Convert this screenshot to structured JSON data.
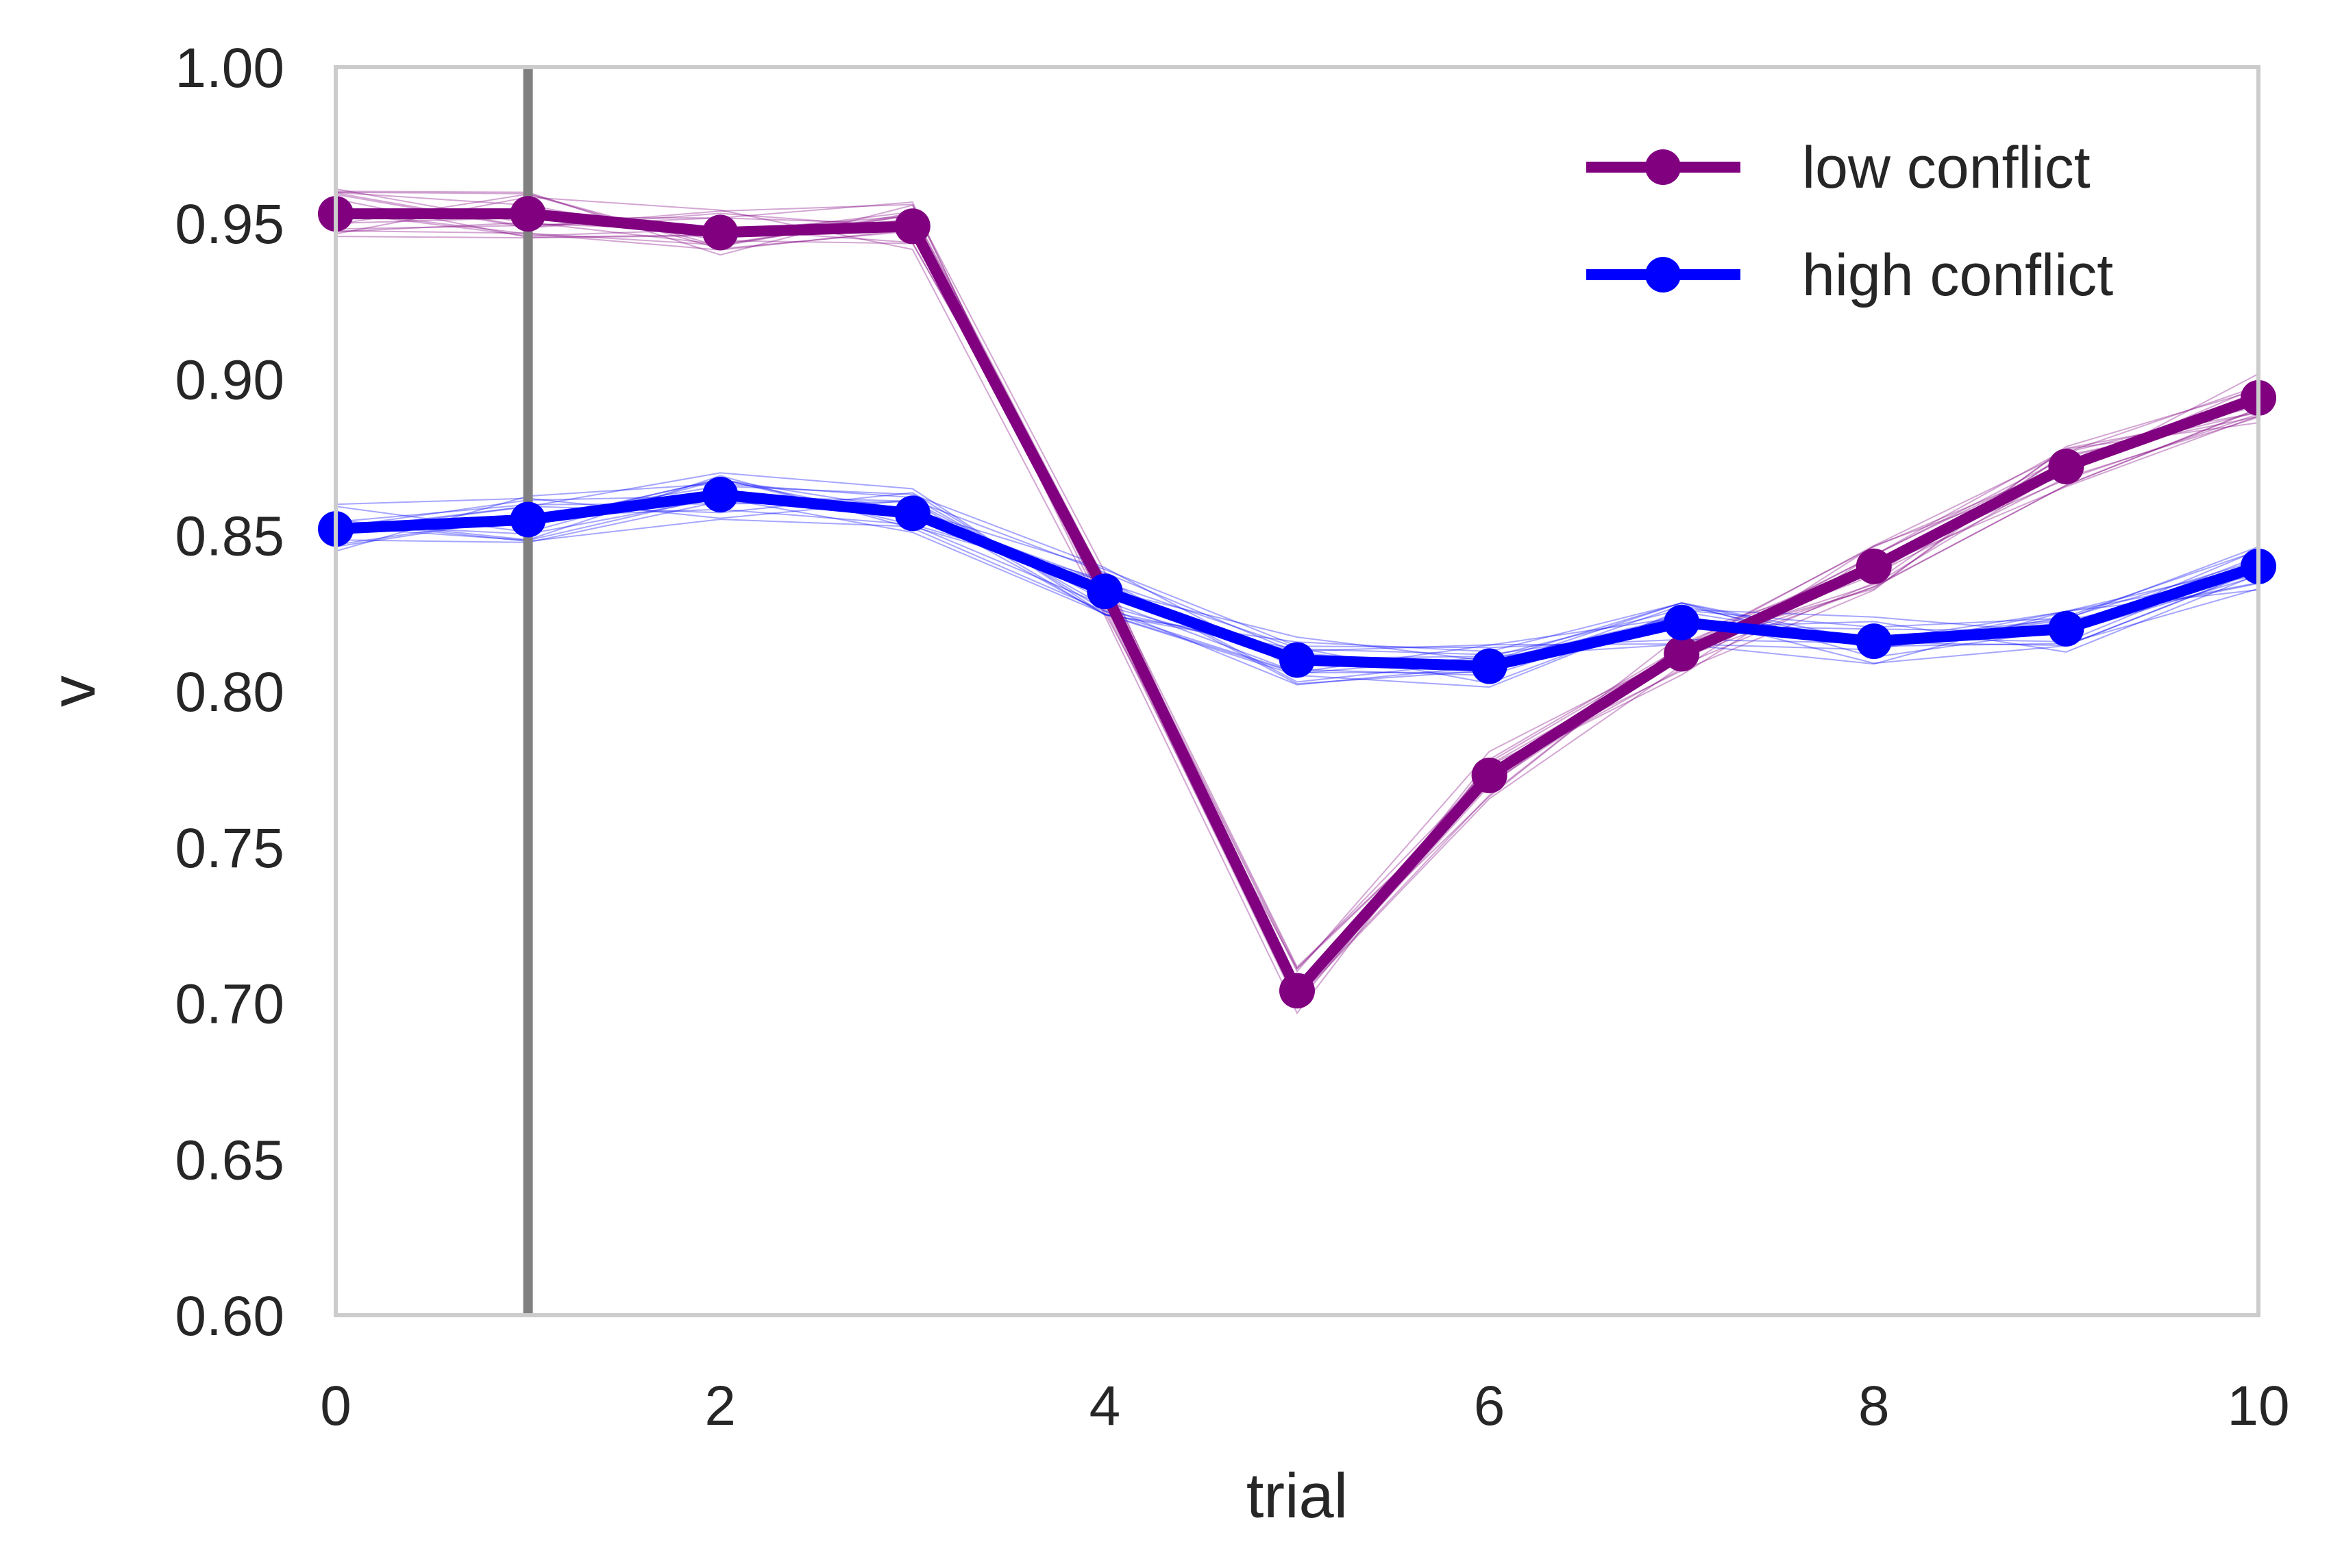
{
  "chart_data": {
    "type": "line",
    "title": "",
    "xlabel": "trial",
    "ylabel": "v",
    "xlim": [
      0,
      10
    ],
    "ylim": [
      0.6,
      1.0
    ],
    "xticks": [
      "0",
      "2",
      "4",
      "6",
      "8",
      "10"
    ],
    "yticks": [
      "0.60",
      "0.65",
      "0.70",
      "0.75",
      "0.80",
      "0.85",
      "0.90",
      "0.95",
      "1.00"
    ],
    "grid": false,
    "legend_position": "top-right",
    "vline_x": 1,
    "vline_color": "#808080",
    "x": [
      0,
      1,
      2,
      3,
      4,
      5,
      6,
      7,
      8,
      9,
      10
    ],
    "series": [
      {
        "name": "low conflict",
        "color": "#800080",
        "values": [
          0.953,
          0.953,
          0.947,
          0.949,
          0.832,
          0.704,
          0.773,
          0.812,
          0.84,
          0.872,
          0.894
        ]
      },
      {
        "name": "high conflict",
        "color": "#0000ff",
        "values": [
          0.852,
          0.855,
          0.863,
          0.857,
          0.832,
          0.81,
          0.808,
          0.822,
          0.816,
          0.82,
          0.84
        ]
      }
    ]
  }
}
